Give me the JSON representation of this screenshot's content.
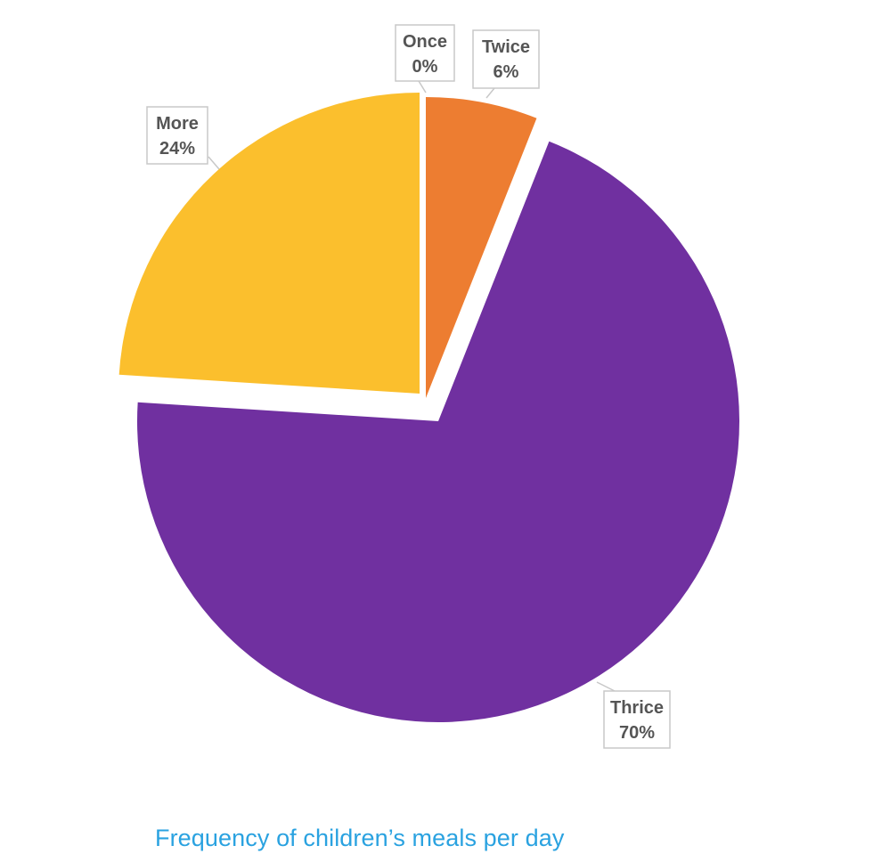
{
  "chart_data": {
    "type": "pie",
    "title": "Frequency of children’s meals per day",
    "slices": [
      {
        "label": "Once",
        "value": 0,
        "percent_label": "0%",
        "color": "#ed7d31"
      },
      {
        "label": "Twice",
        "value": 6,
        "percent_label": "6%",
        "color": "#ed7d31"
      },
      {
        "label": "Thrice",
        "value": 70,
        "percent_label": "70%",
        "color": "#7030a0"
      },
      {
        "label": "More",
        "value": 24,
        "percent_label": "24%",
        "color": "#fbbf2d"
      }
    ],
    "start_angle": "12 o'clock",
    "direction": "clockwise",
    "exploded": true,
    "data_labels": "callouts with category name and percent"
  }
}
